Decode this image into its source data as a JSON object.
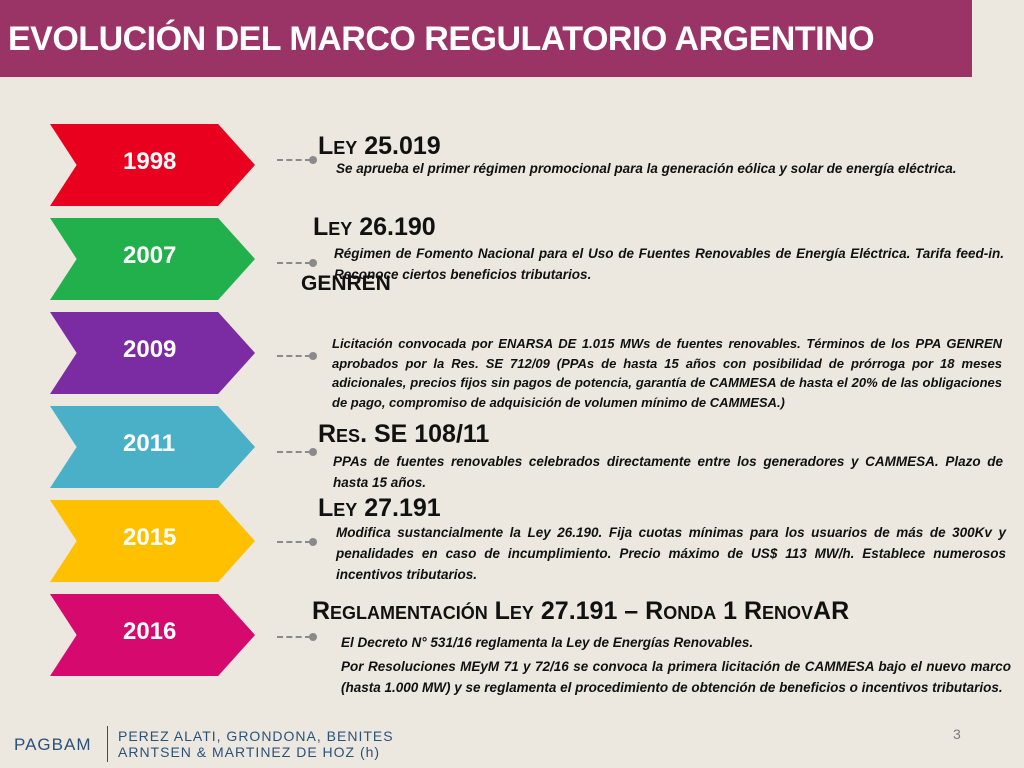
{
  "title": "EVOLUCIÓN DEL MARCO REGULATORIO ARGENTINO",
  "timeline": [
    {
      "year": "1998",
      "color": "#e8001e",
      "heading": "Ley 25.019",
      "text": "Se aprueba el primer régimen promocional para la generación eólica y solar de energía eléctrica."
    },
    {
      "year": "2007",
      "color": "#22b04c",
      "heading": "Ley 26.190",
      "text": "Régimen de Fomento Nacional para el Uso de Fuentes Renovables de Energía Eléctrica. Tarifa feed-in. Reconoce ciertos beneficios tributarios."
    },
    {
      "year": "2009",
      "color": "#7b2ca2",
      "heading": "GENREN",
      "text": "Licitación convocada por ENARSA DE 1.015 MWs de fuentes renovables. Términos de los PPA GENREN aprobados por la Res. SE 712/09 (PPAs de hasta 15 años con posibilidad de prórroga por 18 meses adicionales, precios fijos sin pagos de potencia, garantía de CAMMESA de hasta el 20% de las obligaciones de pago, compromiso de adquisición de volumen mínimo de CAMMESA.)"
    },
    {
      "year": "2011",
      "color": "#4ab0c8",
      "heading": "Res. SE 108/11",
      "text": "PPAs de fuentes renovables celebrados directamente entre los generadores y CAMMESA. Plazo de hasta 15 años."
    },
    {
      "year": "2015",
      "color": "#ffc000",
      "heading": "Ley 27.191",
      "text": "Modifica sustancialmente la Ley 26.190. Fija cuotas mínimas para los usuarios de más de 300Kv y penalidades en caso de incumplimiento. Precio máximo de US$ 113 MW/h. Establece numerosos incentivos tributarios."
    },
    {
      "year": "2016",
      "color": "#d60a6e",
      "heading": "Reglamentación Ley 27.191 – Ronda 1 RenovAR",
      "text": "El Decreto N° 531/16 reglamenta la Ley de Energías Renovables.",
      "text2": "Por Resoluciones MEyM 71 y 72/16 se convoca la primera licitación de CAMMESA bajo el nuevo marco (hasta 1.000 MW) y se reglamenta el procedimiento de obtención de beneficios o incentivos tributarios."
    }
  ],
  "footer": {
    "logo": "PAGBAM",
    "firm_line1": "PEREZ ALATI, GRONDONA, BENITES",
    "firm_line2": "ARNTSEN & MARTINEZ DE HOZ (h)",
    "page": "3"
  }
}
